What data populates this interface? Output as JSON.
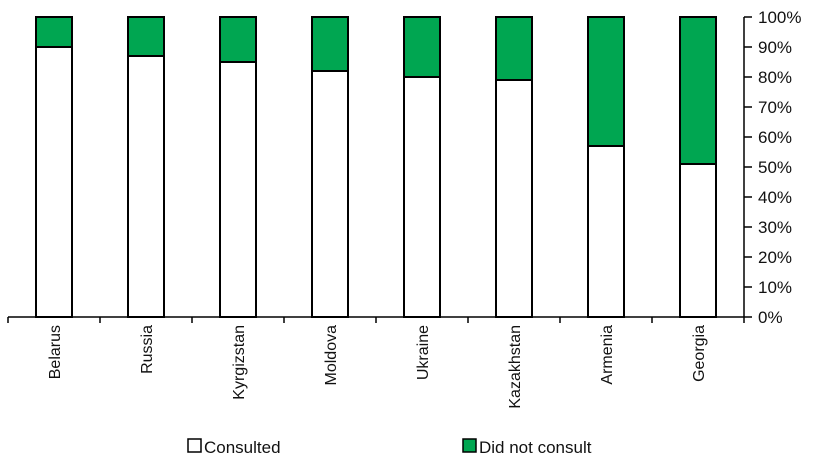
{
  "chart_data": {
    "type": "bar",
    "stacked": true,
    "categories": [
      "Belarus",
      "Russia",
      "Kyrgizstan",
      "Moldova",
      "Ukraine",
      "Kazakhstan",
      "Armenia",
      "Georgia"
    ],
    "series": [
      {
        "name": "Consulted",
        "color": "#ffffff",
        "values": [
          90,
          87,
          85,
          82,
          80,
          79,
          57,
          51
        ]
      },
      {
        "name": "Did not consult",
        "color": "#00a651",
        "values": [
          10,
          13,
          15,
          18,
          20,
          21,
          43,
          49
        ]
      }
    ],
    "yaxis": {
      "position": "right",
      "ylim": [
        0,
        100
      ],
      "ticks": [
        "0%",
        "10%",
        "20%",
        "30%",
        "40%",
        "50%",
        "60%",
        "70%",
        "80%",
        "90%",
        "100%"
      ]
    },
    "xaxis": {
      "tick_label_rotation": -90
    },
    "grid": false,
    "legend_position": "bottom"
  }
}
